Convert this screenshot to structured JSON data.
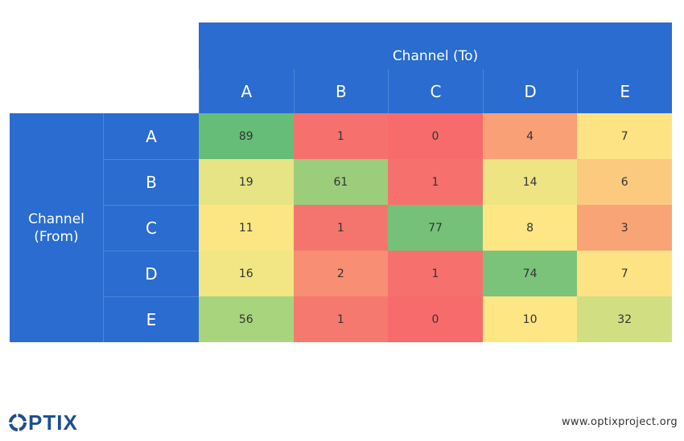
{
  "chart_data": {
    "type": "heatmap",
    "x_title": "Channel (To)",
    "y_title": [
      "Channel",
      "(From)"
    ],
    "x_categories": [
      "A",
      "B",
      "C",
      "D",
      "E"
    ],
    "y_categories": [
      "A",
      "B",
      "C",
      "D",
      "E"
    ],
    "values": [
      [
        89,
        1,
        0,
        4,
        7
      ],
      [
        19,
        61,
        1,
        14,
        6
      ],
      [
        11,
        1,
        77,
        8,
        3
      ],
      [
        16,
        2,
        1,
        74,
        7
      ],
      [
        56,
        1,
        0,
        10,
        32
      ]
    ],
    "cell_colors": [
      [
        "#66bd78",
        "#f6716e",
        "#f76b6c",
        "#f9a076",
        "#fde383"
      ],
      [
        "#e6e484",
        "#9ccd7b",
        "#f6716e",
        "#efe484",
        "#fbca7e"
      ],
      [
        "#fbe683",
        "#f4756e",
        "#76c179",
        "#fde683",
        "#f9a477"
      ],
      [
        "#f1e683",
        "#f88e73",
        "#f6716e",
        "#7bc37a",
        "#fde383"
      ],
      [
        "#a9d47e",
        "#f6796f",
        "#f76b6c",
        "#fde683",
        "#d1de82"
      ]
    ]
  },
  "branding": {
    "logo_text": "PTIX",
    "logo_icon": "optix-o-icon",
    "url": "www.optixproject.org"
  },
  "colors": {
    "header_blue": "#2a6ccf",
    "logo_blue": "#1f4e8c"
  }
}
